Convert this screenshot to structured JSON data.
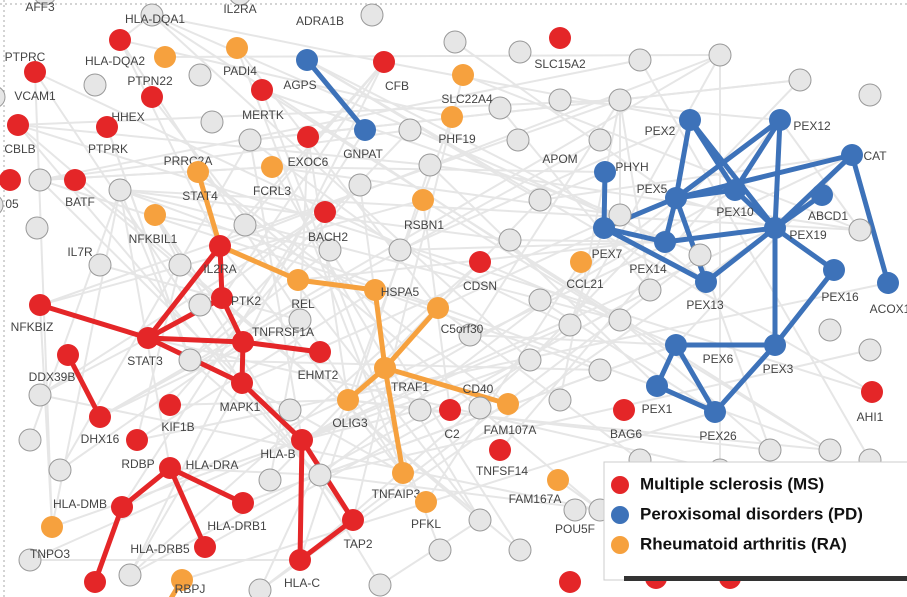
{
  "groups": [
    {
      "label": "Multiple sclerosis (MS)",
      "color": "#e42628",
      "nodes": [
        "HLA-DQA1",
        "PTPRC",
        "HHEX",
        "MERTK",
        "CFB",
        "CBLB",
        "PTPRK",
        "EXOC6",
        "BATF",
        "BACH2",
        "CDSN",
        "NFKBIZ",
        "STAT3",
        "IL2RA",
        "PTK2",
        "TNFRSF1A",
        "EHMT2",
        "MAPK1",
        "DDX39B",
        "DHX16",
        "KIF1B",
        "RDBP",
        "HLA-DRA",
        "HLA-DRB1",
        "HLA-DMB",
        "HLA-DRB5",
        "HLA-B",
        "TAP2",
        "HLA-C",
        "C2",
        "TNFSF14",
        "BAG6",
        "AHI1"
      ]
    },
    {
      "label": "Peroxisomal disorders (PD)",
      "color": "#3d72b9",
      "nodes": [
        "AGPS",
        "GNPAT",
        "PHYH",
        "PEX2",
        "PEX12",
        "CAT",
        "PEX5",
        "PEX10",
        "ABCD1",
        "PEX7",
        "PEX19",
        "PEX14",
        "PEX13",
        "PEX16",
        "ACOX1",
        "PEX3",
        "PEX6",
        "PEX1",
        "PEX26"
      ]
    },
    {
      "label": "Rheumatoid arthritis (RA)",
      "color": "#f6a13e",
      "nodes": [
        "PTPN22",
        "PADI4",
        "SLC22A4",
        "PHF19",
        "FCRL3",
        "STAT4",
        "NFKBIL1",
        "RSBN1",
        "REL",
        "HSPA5",
        "C5orf30",
        "CCL21",
        "TRAF1",
        "CD40",
        "OLIG3",
        "TNFAIP3",
        "PFKL",
        "FAM167A",
        "TNPO3",
        "RBPJ"
      ]
    }
  ],
  "other_nodes": [
    "AFF3",
    "IL2RA",
    "ADRA1B",
    "SLC15A2",
    "HLA-DQA2",
    "VCAM1",
    "PRRC2A",
    "APOM",
    "IL7R",
    "05",
    "FAM107A",
    "POU5F"
  ]
}
